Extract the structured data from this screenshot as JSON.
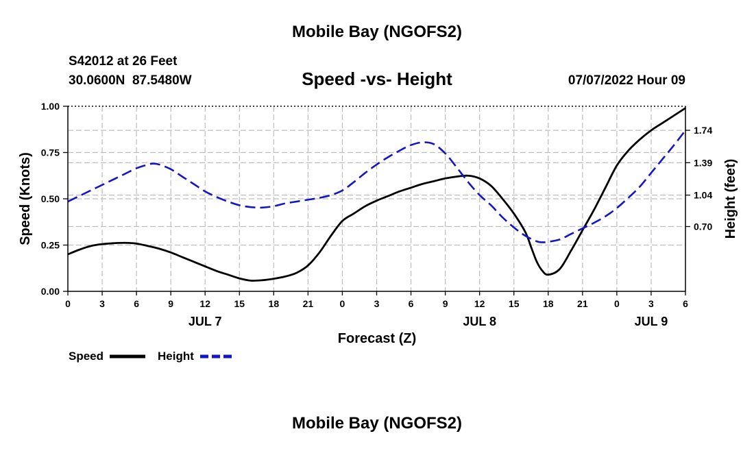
{
  "page_title_top": "Mobile Bay (NGOFS2)",
  "page_title_bottom": "Mobile Bay (NGOFS2)",
  "station": {
    "name_line": "S42012 at 26 Feet",
    "coords_line": "30.0600N  87.5480W"
  },
  "issued": "07/07/2022 Hour 09",
  "colors": {
    "speed": "#000000",
    "height": "#1515c8",
    "grid": "#bdbdbd"
  },
  "chart_data": {
    "type": "line",
    "title": "Speed -vs- Height",
    "xlabel": "Forecast (Z)",
    "ylabel_left": "Speed (Knots)",
    "ylabel_right": "Height (feet)",
    "x_range_hours": [
      0,
      54
    ],
    "x_ticks": [
      {
        "h": 0,
        "label": "0"
      },
      {
        "h": 3,
        "label": "3"
      },
      {
        "h": 6,
        "label": "6"
      },
      {
        "h": 9,
        "label": "9"
      },
      {
        "h": 12,
        "label": "12"
      },
      {
        "h": 15,
        "label": "15"
      },
      {
        "h": 18,
        "label": "18"
      },
      {
        "h": 21,
        "label": "21"
      },
      {
        "h": 24,
        "label": "0"
      },
      {
        "h": 27,
        "label": "3"
      },
      {
        "h": 30,
        "label": "6"
      },
      {
        "h": 33,
        "label": "9"
      },
      {
        "h": 36,
        "label": "12"
      },
      {
        "h": 39,
        "label": "15"
      },
      {
        "h": 42,
        "label": "18"
      },
      {
        "h": 45,
        "label": "21"
      },
      {
        "h": 48,
        "label": "0"
      },
      {
        "h": 51,
        "label": "3"
      },
      {
        "h": 54,
        "label": "6"
      }
    ],
    "date_labels": [
      {
        "h": 12,
        "label": "JUL 7"
      },
      {
        "h": 36,
        "label": "JUL 8"
      },
      {
        "h": 51,
        "label": "JUL 9"
      }
    ],
    "left_axis": {
      "ylim": [
        0,
        1.0
      ],
      "ticks": [
        {
          "v": 0.0,
          "label": "0.00"
        },
        {
          "v": 0.25,
          "label": "0.25"
        },
        {
          "v": 0.5,
          "label": "0.50"
        },
        {
          "v": 0.75,
          "label": "0.75"
        },
        {
          "v": 1.0,
          "label": "1.00"
        }
      ]
    },
    "right_axis": {
      "ylim": [
        0.0,
        2.0
      ],
      "ticks": [
        {
          "v": 0.7,
          "label": "0.70"
        },
        {
          "v": 1.04,
          "label": "1.04"
        },
        {
          "v": 1.39,
          "label": "1.39"
        },
        {
          "v": 1.74,
          "label": "1.74"
        }
      ]
    },
    "series": [
      {
        "name": "Speed",
        "axis": "left",
        "style": "solid",
        "x": [
          0,
          1,
          2,
          3,
          4,
          5,
          6,
          7,
          8,
          9,
          10,
          11,
          12,
          13,
          14,
          15,
          16,
          17,
          18,
          19,
          20,
          21,
          22,
          23,
          24,
          25,
          26,
          27,
          28,
          29,
          30,
          31,
          32,
          33,
          34,
          35,
          36,
          37,
          38,
          39,
          40,
          40.5,
          41,
          41.5,
          42,
          43,
          44,
          45,
          46,
          47,
          48,
          49,
          50,
          51,
          52,
          53,
          54
        ],
        "values": [
          0.2,
          0.225,
          0.245,
          0.255,
          0.26,
          0.262,
          0.258,
          0.245,
          0.23,
          0.21,
          0.185,
          0.16,
          0.135,
          0.11,
          0.09,
          0.07,
          0.058,
          0.06,
          0.068,
          0.08,
          0.1,
          0.14,
          0.21,
          0.3,
          0.38,
          0.42,
          0.46,
          0.49,
          0.515,
          0.54,
          0.56,
          0.58,
          0.595,
          0.61,
          0.62,
          0.625,
          0.61,
          0.57,
          0.5,
          0.42,
          0.32,
          0.24,
          0.16,
          0.11,
          0.09,
          0.12,
          0.22,
          0.33,
          0.44,
          0.56,
          0.68,
          0.76,
          0.82,
          0.87,
          0.91,
          0.95,
          0.99
        ]
      },
      {
        "name": "Height",
        "axis": "right",
        "style": "dashed",
        "x": [
          0,
          1,
          2,
          3,
          4,
          5,
          6,
          7,
          7.5,
          8,
          9,
          10,
          11,
          12,
          13,
          14,
          15,
          16,
          17,
          18,
          19,
          20,
          21,
          22,
          23,
          24,
          25,
          26,
          27,
          28,
          29,
          30,
          31,
          32,
          33,
          34,
          35,
          36,
          37,
          38,
          39,
          40,
          41,
          41.5,
          42,
          43,
          44,
          45,
          46,
          47,
          48,
          49,
          50,
          51,
          52,
          53,
          54
        ],
        "values": [
          0.97,
          1.03,
          1.09,
          1.15,
          1.21,
          1.27,
          1.33,
          1.37,
          1.38,
          1.37,
          1.32,
          1.24,
          1.16,
          1.08,
          1.02,
          0.97,
          0.93,
          0.91,
          0.905,
          0.92,
          0.95,
          0.97,
          0.99,
          1.01,
          1.04,
          1.09,
          1.18,
          1.28,
          1.37,
          1.45,
          1.52,
          1.58,
          1.61,
          1.59,
          1.49,
          1.34,
          1.18,
          1.04,
          0.93,
          0.8,
          0.69,
          0.6,
          0.54,
          0.53,
          0.535,
          0.56,
          0.62,
          0.68,
          0.74,
          0.81,
          0.9,
          1.01,
          1.13,
          1.28,
          1.43,
          1.58,
          1.74
        ]
      }
    ],
    "legend": [
      {
        "name": "Speed",
        "style": "solid"
      },
      {
        "name": "Height",
        "style": "dashed"
      }
    ]
  }
}
